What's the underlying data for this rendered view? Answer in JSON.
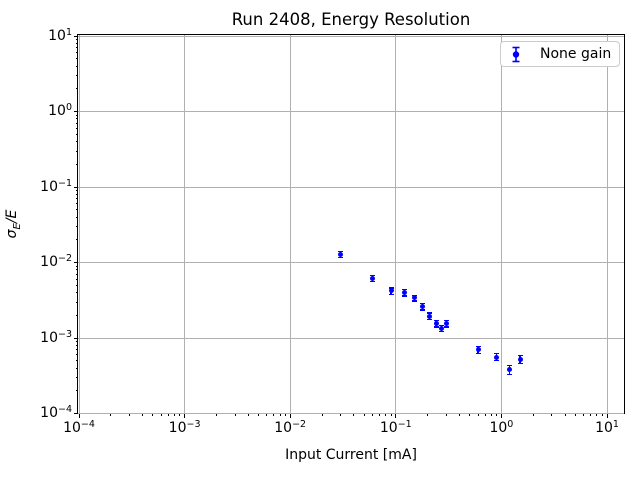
{
  "chart_data": {
    "type": "scatter",
    "title": "Run 2408, Energy Resolution",
    "xlabel": "Input Current [mA]",
    "ylabel": {
      "text": "σ_E/E",
      "base": "σ",
      "subscript": "E",
      "suffix": "/E"
    },
    "x_scale": "log",
    "y_scale": "log",
    "xlim": [
      0.0001,
      13.9
    ],
    "ylim": [
      0.0001,
      10
    ],
    "x_tick_exponents": [
      -4,
      -3,
      -2,
      -1,
      0,
      1
    ],
    "y_tick_exponents": [
      -4,
      -3,
      -2,
      -1,
      0,
      1
    ],
    "grid": true,
    "legend": {
      "position": "upper right",
      "entries": [
        {
          "label": "None gain",
          "color": "#0000ff",
          "marker": "errorbar-circle"
        }
      ]
    },
    "series": [
      {
        "name": "None gain",
        "color": "#0000ff",
        "x": [
          0.03,
          0.06,
          0.09,
          0.12,
          0.15,
          0.18,
          0.21,
          0.24,
          0.27,
          0.3,
          0.6,
          0.9,
          1.2,
          1.5
        ],
        "y": [
          0.0128,
          0.0062,
          0.0042,
          0.004,
          0.0034,
          0.0026,
          0.00195,
          0.00155,
          0.00135,
          0.00155,
          0.0007,
          0.00056,
          0.00038,
          0.00052
        ],
        "yerr": [
          0.0012,
          0.0006,
          0.0004,
          0.0004,
          0.0003,
          0.00025,
          0.0002,
          0.00015,
          0.00013,
          0.00015,
          8e-05,
          6e-05,
          5e-05,
          6e-05
        ]
      }
    ]
  },
  "colors": {
    "background": "#ffffff",
    "marker": "#0000ff",
    "grid": "#b0b0b0",
    "spine": "#000000",
    "legend_border": "#cccccc"
  }
}
